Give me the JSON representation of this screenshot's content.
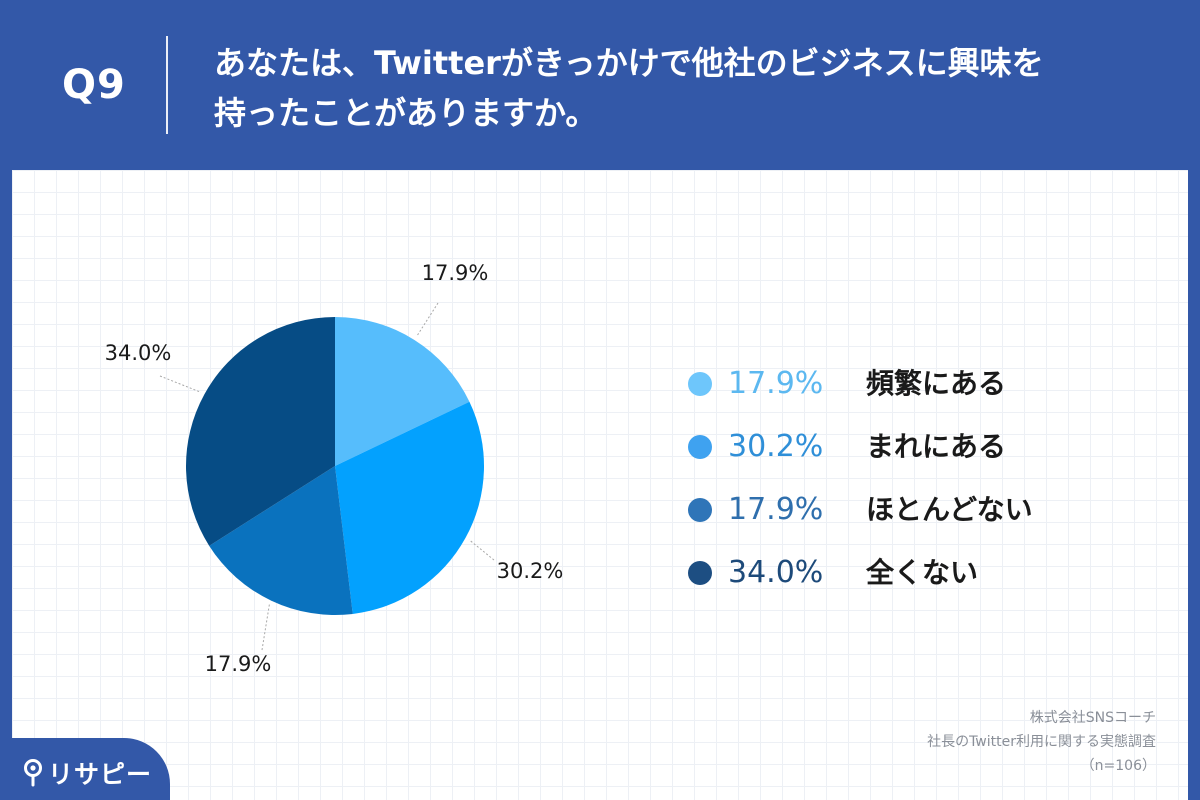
{
  "header": {
    "question_number": "Q9",
    "question_line1": "あなたは、Twitterがきっかけで他社のビジネスに興味を",
    "question_line2": "持ったことがありますか。"
  },
  "chart_data": {
    "type": "pie",
    "title": "",
    "categories": [
      "頻繁にある",
      "まれにある",
      "ほとんどない",
      "全くない"
    ],
    "values": [
      17.9,
      30.2,
      17.9,
      34.0
    ],
    "labels": [
      "17.9%",
      "30.2%",
      "17.9%",
      "34.0%"
    ],
    "colors": [
      "#56bdfc",
      "#03a1fe",
      "#0a72be",
      "#064c85"
    ],
    "start_angle": "12 o'clock",
    "direction": "clockwise",
    "legend_position": "right",
    "grid": false
  },
  "legend": {
    "items": [
      {
        "pct": "17.9%",
        "label": "頻繁にある",
        "color": "#6ec6fb",
        "text_color": "#5cb8f0"
      },
      {
        "pct": "30.2%",
        "label": "まれにある",
        "color": "#3fa2f0",
        "text_color": "#2f8fd8"
      },
      {
        "pct": "17.9%",
        "label": "ほとんどない",
        "color": "#2f75b8",
        "text_color": "#2f6fad"
      },
      {
        "pct": "34.0%",
        "label": "全くない",
        "color": "#1d4e82",
        "text_color": "#1d4a7a"
      }
    ]
  },
  "source": {
    "line1": "株式会社SNSコーチ",
    "line2": "社長のTwitter利用に関する実態調査",
    "line3": "（n=106）"
  },
  "logo": {
    "text": "リサピー"
  }
}
